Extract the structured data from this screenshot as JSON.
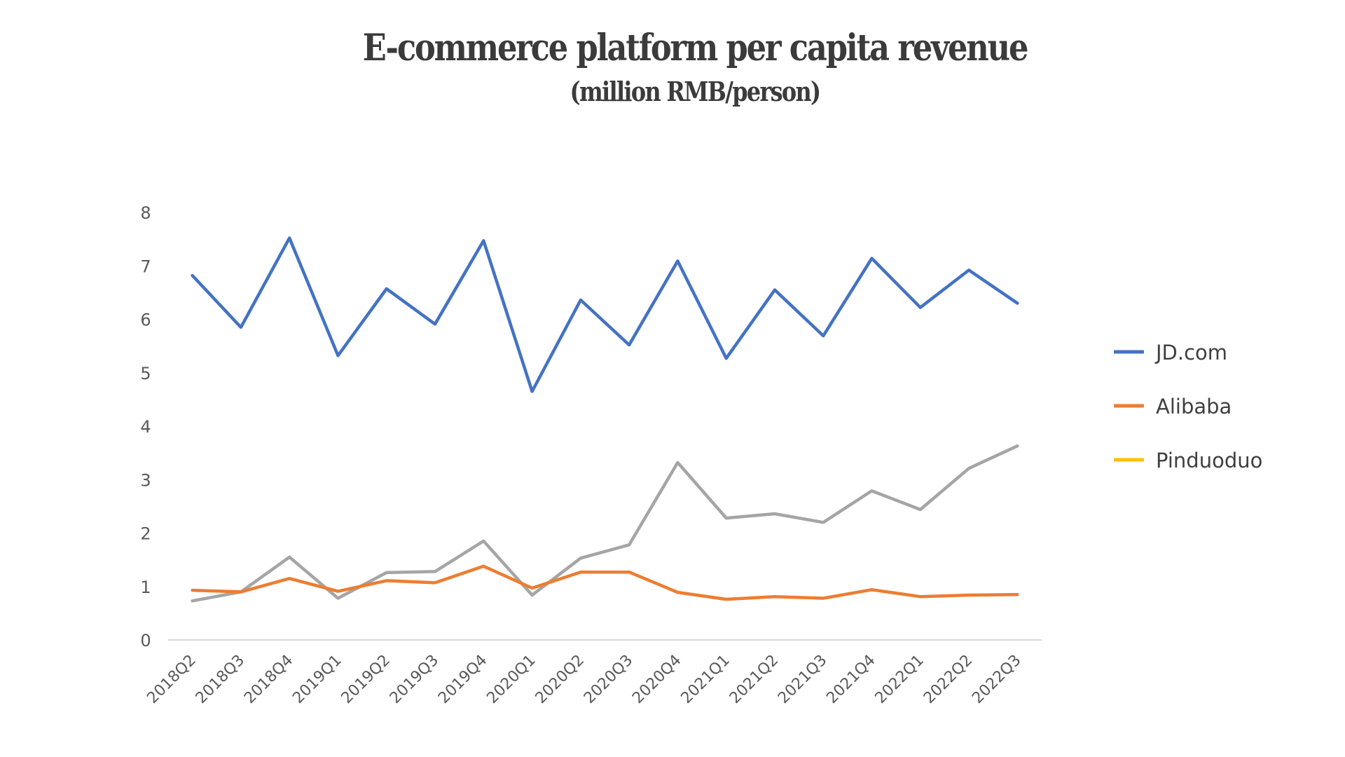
{
  "chart_data": {
    "type": "line",
    "title": "E-commerce platform per capita revenue",
    "subtitle": "(million RMB/person)",
    "xlabel": "",
    "ylabel": "",
    "ylim": [
      0,
      8
    ],
    "yticks": [
      "0",
      "1",
      "2",
      "3",
      "4",
      "5",
      "6",
      "7",
      "8"
    ],
    "grid": false,
    "legend_position": "right",
    "categories": [
      "2018Q2",
      "2018Q3",
      "2018Q4",
      "2019Q1",
      "2019Q2",
      "2019Q3",
      "2019Q4",
      "2020Q1",
      "2020Q2",
      "2020Q3",
      "2020Q4",
      "2021Q1",
      "2021Q2",
      "2021Q3",
      "2021Q4",
      "2022Q1",
      "2022Q2",
      "2022Q3"
    ],
    "series": [
      {
        "name": "JD.com",
        "color": "#4472C4",
        "values": [
          6.82,
          5.85,
          7.52,
          5.32,
          6.57,
          5.91,
          7.47,
          4.65,
          6.36,
          5.52,
          7.09,
          5.27,
          6.55,
          5.69,
          7.14,
          6.22,
          6.92,
          6.3
        ]
      },
      {
        "name": "Alibaba",
        "color": "#ED7D31",
        "values": [
          0.93,
          0.9,
          1.15,
          0.91,
          1.11,
          1.07,
          1.38,
          0.97,
          1.27,
          1.27,
          0.89,
          0.76,
          0.81,
          0.78,
          0.94,
          0.81,
          0.84,
          0.85
        ]
      },
      {
        "name": "Pinduoduo",
        "color": "#A5A5A5",
        "legend_color": "#FFC000",
        "values": [
          0.73,
          0.9,
          1.55,
          0.78,
          1.26,
          1.28,
          1.85,
          0.84,
          1.53,
          1.78,
          3.32,
          2.28,
          2.36,
          2.2,
          2.79,
          2.44,
          3.21,
          3.63
        ]
      }
    ]
  },
  "colors": {
    "title": "#3b3b3b",
    "axis_text": "#595959",
    "baseline": "#d9d9d9"
  }
}
